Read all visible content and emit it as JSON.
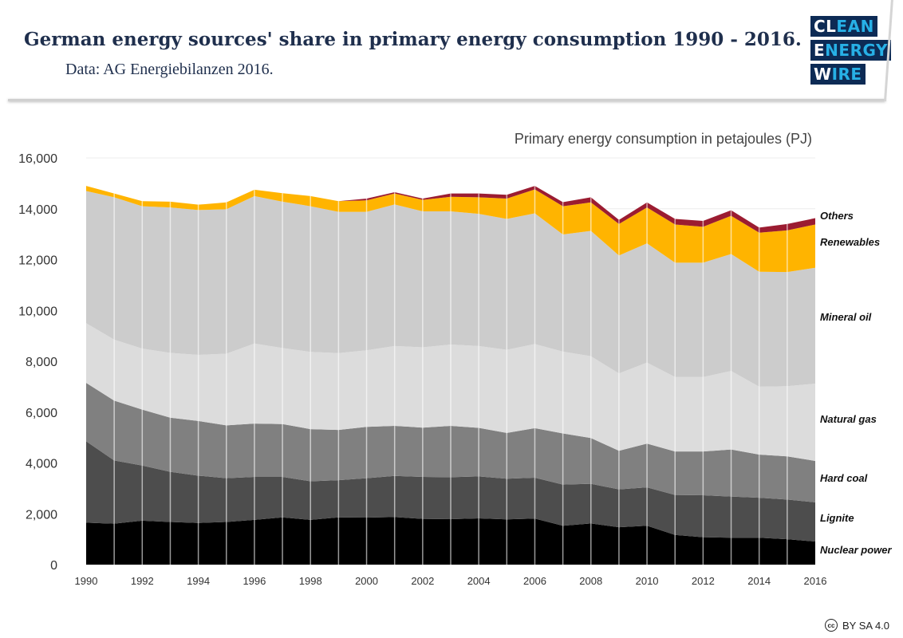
{
  "header": {
    "title": "German energy sources' share in primary energy consumption 1990 - 2016.",
    "subtitle": "Data: AG Energiebilanzen 2016."
  },
  "logo": {
    "rows": [
      [
        "CL",
        "EAN"
      ],
      [
        "E",
        "NERGY"
      ],
      [
        "W",
        "IRE"
      ]
    ]
  },
  "license": {
    "icon": "cc-icon",
    "text": "BY SA 4.0"
  },
  "chart_data": {
    "type": "area",
    "stacked": true,
    "title": "Primary energy consumption in petajoules (PJ)",
    "xlabel": "",
    "ylabel": "",
    "ylim": [
      0,
      16000
    ],
    "yticks": [
      "0",
      "2,000",
      "4,000",
      "6,000",
      "8,000",
      "10,000",
      "12,000",
      "14,000",
      "16,000"
    ],
    "xticks": [
      "1990",
      "1992",
      "1994",
      "1996",
      "1998",
      "2000",
      "2002",
      "2004",
      "2006",
      "2008",
      "2010",
      "2012",
      "2014",
      "2016"
    ],
    "grid": true,
    "legend": "right, inline labels",
    "x": [
      1990,
      1991,
      1992,
      1993,
      1994,
      1995,
      1996,
      1997,
      1998,
      1999,
      2000,
      2001,
      2002,
      2003,
      2004,
      2005,
      2006,
      2007,
      2008,
      2009,
      2010,
      2011,
      2012,
      2013,
      2014,
      2015,
      2016
    ],
    "series": [
      {
        "name": "Nuclear power",
        "color": "#000000",
        "values": [
          1650,
          1610,
          1730,
          1680,
          1640,
          1680,
          1760,
          1860,
          1760,
          1860,
          1850,
          1870,
          1800,
          1790,
          1820,
          1780,
          1810,
          1530,
          1620,
          1470,
          1530,
          1170,
          1080,
          1060,
          1060,
          1000,
          910
        ]
      },
      {
        "name": "Lignite",
        "color": "#4d4d4d",
        "values": [
          3200,
          2490,
          2170,
          1970,
          1860,
          1720,
          1690,
          1590,
          1520,
          1460,
          1550,
          1620,
          1650,
          1650,
          1650,
          1600,
          1610,
          1620,
          1560,
          1490,
          1510,
          1570,
          1650,
          1620,
          1570,
          1560,
          1540
        ]
      },
      {
        "name": "Hard coal",
        "color": "#808080",
        "values": [
          2300,
          2350,
          2200,
          2130,
          2150,
          2080,
          2100,
          2080,
          2050,
          1980,
          2020,
          1970,
          1940,
          2020,
          1910,
          1800,
          1950,
          2010,
          1800,
          1520,
          1720,
          1710,
          1720,
          1850,
          1700,
          1700,
          1630
        ]
      },
      {
        "name": "Natural gas",
        "color": "#dcdcdc",
        "values": [
          2350,
          2400,
          2400,
          2550,
          2600,
          2820,
          3150,
          2990,
          3040,
          3020,
          3010,
          3140,
          3160,
          3200,
          3220,
          3270,
          3310,
          3220,
          3220,
          3040,
          3190,
          2930,
          2930,
          3090,
          2670,
          2760,
          3040
        ]
      },
      {
        "name": "Mineral oil",
        "color": "#cccccc",
        "values": [
          5200,
          5600,
          5600,
          5720,
          5700,
          5680,
          5800,
          5760,
          5730,
          5560,
          5450,
          5570,
          5350,
          5240,
          5200,
          5150,
          5140,
          4610,
          4930,
          4640,
          4690,
          4500,
          4500,
          4600,
          4520,
          4490,
          4560
        ]
      },
      {
        "name": "Renewables",
        "color": "#ffb400",
        "values": [
          200,
          150,
          200,
          230,
          210,
          270,
          250,
          330,
          400,
          420,
          450,
          430,
          450,
          570,
          650,
          800,
          940,
          1110,
          1120,
          1240,
          1410,
          1500,
          1410,
          1500,
          1540,
          1640,
          1700
        ]
      },
      {
        "name": "Others",
        "color": "#9b1c31",
        "values": [
          0,
          0,
          0,
          0,
          0,
          0,
          0,
          0,
          0,
          0,
          70,
          50,
          50,
          130,
          150,
          150,
          140,
          160,
          200,
          160,
          200,
          220,
          230,
          220,
          200,
          250,
          250
        ]
      }
    ]
  }
}
